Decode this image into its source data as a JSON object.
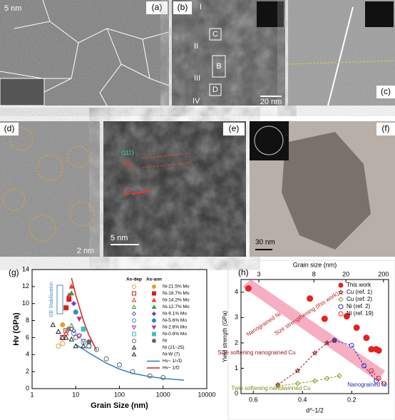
{
  "panels": [
    {
      "label": "(a)",
      "scale": "5 nm"
    },
    {
      "label": "(b)",
      "scale": "20 nm",
      "marks": [
        "I",
        "II",
        "III",
        "IV",
        "B",
        "C",
        "D"
      ]
    },
    {
      "label": "(c)"
    },
    {
      "label": "(d)",
      "scale": "2 nm"
    },
    {
      "label": "(e)",
      "scale": "5 nm",
      "marks": [
        "{111}",
        "TBs",
        "GP"
      ]
    },
    {
      "label": "(f)",
      "scale": "30 nm"
    }
  ],
  "chart_data": [
    {
      "type": "scatter",
      "panel": "(g)",
      "xlabel": "Grain Size (nm)",
      "ylabel": "Hv (GPa)",
      "xscale": "log",
      "xlim": [
        1,
        10000
      ],
      "xticks": [
        1,
        10,
        100,
        1000,
        10000
      ],
      "ylim": [
        0,
        14
      ],
      "yticks": [
        0,
        2,
        4,
        6,
        8,
        10,
        12,
        14
      ],
      "legend_headers": [
        "As-dep",
        "As-ann"
      ],
      "annotation": "GB Stabilization",
      "series": [
        {
          "name": "Ni-21.5% Mo",
          "color": "#e0a040",
          "marker": "circle",
          "x_dep": [
            4,
            5
          ],
          "dep": [
            5.0,
            5.3
          ],
          "x_ann": [
            5
          ],
          "ann": [
            7.5
          ]
        },
        {
          "name": "Ni-18.7% Mo",
          "color": "#d62020",
          "marker": "square",
          "x_dep": [
            5,
            6
          ],
          "dep": [
            6.0,
            6.8
          ],
          "x_ann": [
            6,
            7
          ],
          "ann": [
            9.5,
            10.5
          ]
        },
        {
          "name": "Ni-14.2% Mo",
          "color": "#e04040",
          "marker": "triangle",
          "x_dep": [
            6,
            7
          ],
          "dep": [
            6.5,
            7.0
          ],
          "x_ann": [
            7,
            8
          ],
          "ann": [
            11.0,
            12.0
          ]
        },
        {
          "name": "Ni-12.7% Mo",
          "color": "#30a030",
          "marker": "triangle",
          "x_dep": [
            6.5,
            8
          ],
          "dep": [
            7.0,
            7.4
          ],
          "x_ann": [
            8
          ],
          "ann": [
            11.2
          ]
        },
        {
          "name": "Ni-9.1% Mo",
          "color": "#8040c0",
          "marker": "diamond",
          "x_dep": [
            8,
            9
          ],
          "dep": [
            7.0,
            6.8
          ],
          "x_ann": [
            9
          ],
          "ann": [
            10.0
          ]
        },
        {
          "name": "Ni-5.6% Mo",
          "color": "#2090d0",
          "marker": "circle",
          "x_dep": [
            9,
            12
          ],
          "dep": [
            6.5,
            6.2
          ],
          "x_ann": [
            10
          ],
          "ann": [
            9.0
          ]
        },
        {
          "name": "Ni-2.8% Mo",
          "color": "#c03090",
          "marker": "tridown",
          "x_dep": [
            12,
            15
          ],
          "dep": [
            6.2,
            5.6
          ],
          "x_ann": [
            12
          ],
          "ann": [
            8.2
          ]
        },
        {
          "name": "Ni-0.8% Mo",
          "color": "#40c0c0",
          "marker": "square",
          "x_dep": [
            15,
            20
          ],
          "dep": [
            5.5,
            5.0
          ],
          "x_ann": [
            15
          ],
          "ann": [
            7.0
          ]
        },
        {
          "name": "Ni",
          "color": "#666666",
          "marker": "circle",
          "x_dep": [
            10,
            20,
            30,
            50,
            100,
            200,
            500,
            1000
          ],
          "dep": [
            6.0,
            5.0,
            4.6,
            3.5,
            2.8,
            2.0,
            1.5,
            1.3
          ],
          "x_ann": [
            20
          ],
          "ann": [
            5.5
          ]
        },
        {
          "name": "Ni (21~25)",
          "color": "#222222",
          "marker": "triangle",
          "x_dep": [
            3,
            4,
            6,
            10
          ],
          "dep": [
            7.5,
            6.7,
            6.0,
            5.0
          ]
        },
        {
          "name": "Ni-W (7)",
          "color": "#222222",
          "marker": "triangle",
          "x_dep": [
            5,
            8,
            15
          ],
          "dep": [
            6.0,
            5.8,
            5.0
          ]
        }
      ],
      "lines": [
        {
          "name": "Hv~ 1/√D",
          "color": "#2a7fc0",
          "x": [
            10,
            20,
            50,
            100,
            200,
            500,
            1000,
            3000
          ],
          "values": [
            5.2,
            4.2,
            3.0,
            2.3,
            1.8,
            1.4,
            1.2,
            1.0
          ]
        },
        {
          "name": "Hv~ 1/D",
          "color": "#d62020",
          "x": [
            8,
            10,
            15,
            20,
            30
          ],
          "values": [
            13.0,
            11.0,
            8.0,
            6.3,
            4.5
          ]
        }
      ]
    },
    {
      "type": "scatter",
      "panel": "(h)",
      "xlabel": "d^-1/2",
      "ylabel": "Yield strength (GPa)",
      "xlim": [
        0.65,
        0.05
      ],
      "xticks": [
        0.6,
        0.4,
        0.2
      ],
      "x2label": "Grain size (nm)",
      "x2scale": "inverse-sqrt",
      "x2ticks": [
        3,
        8,
        20,
        200
      ],
      "ylim": [
        0,
        4.5
      ],
      "yticks": [
        0,
        1,
        2,
        3,
        4
      ],
      "annotations": [
        "Size strengthening (this work)",
        "Nanograined Ni",
        "Size softening nanograined Cu",
        "Twin softening nanotwinned Cu",
        "Nanograined Ni"
      ],
      "series": [
        {
          "name": "This work",
          "color": "#e82020",
          "marker": "circle",
          "filled": true,
          "x": [
            0.62,
            0.37,
            0.31,
            0.22,
            0.18,
            0.14,
            0.12,
            0.1,
            0.09
          ],
          "values": [
            4.15,
            3.75,
            2.95,
            3.05,
            2.6,
            2.2,
            1.75,
            1.75,
            1.7
          ]
        },
        {
          "name": "Cu (ref. 1)",
          "color": "#8b1a1a",
          "marker": "star",
          "filled": false,
          "x": [
            0.5,
            0.42,
            0.35,
            0.3,
            0.27
          ],
          "values": [
            0.35,
            0.9,
            1.6,
            2.0,
            2.1
          ]
        },
        {
          "name": "Cu (ref. 2)",
          "color": "#8a9a20",
          "marker": "diamond",
          "filled": false,
          "x": [
            0.5,
            0.42,
            0.35,
            0.3,
            0.25
          ],
          "values": [
            0.3,
            0.4,
            0.5,
            0.6,
            0.7
          ]
        },
        {
          "name": "Ni (ref. 2)",
          "color": "#2030c0",
          "marker": "circle",
          "filled": false,
          "x": [
            0.27,
            0.2,
            0.15,
            0.1
          ],
          "values": [
            2.1,
            1.9,
            1.1,
            0.5
          ]
        },
        {
          "name": "Ni (ref. 19)",
          "color": "#e82020",
          "marker": "circle",
          "filled": false,
          "x": [
            0.12,
            0.09,
            0.07
          ],
          "values": [
            0.9,
            0.6,
            0.4
          ]
        }
      ]
    }
  ]
}
